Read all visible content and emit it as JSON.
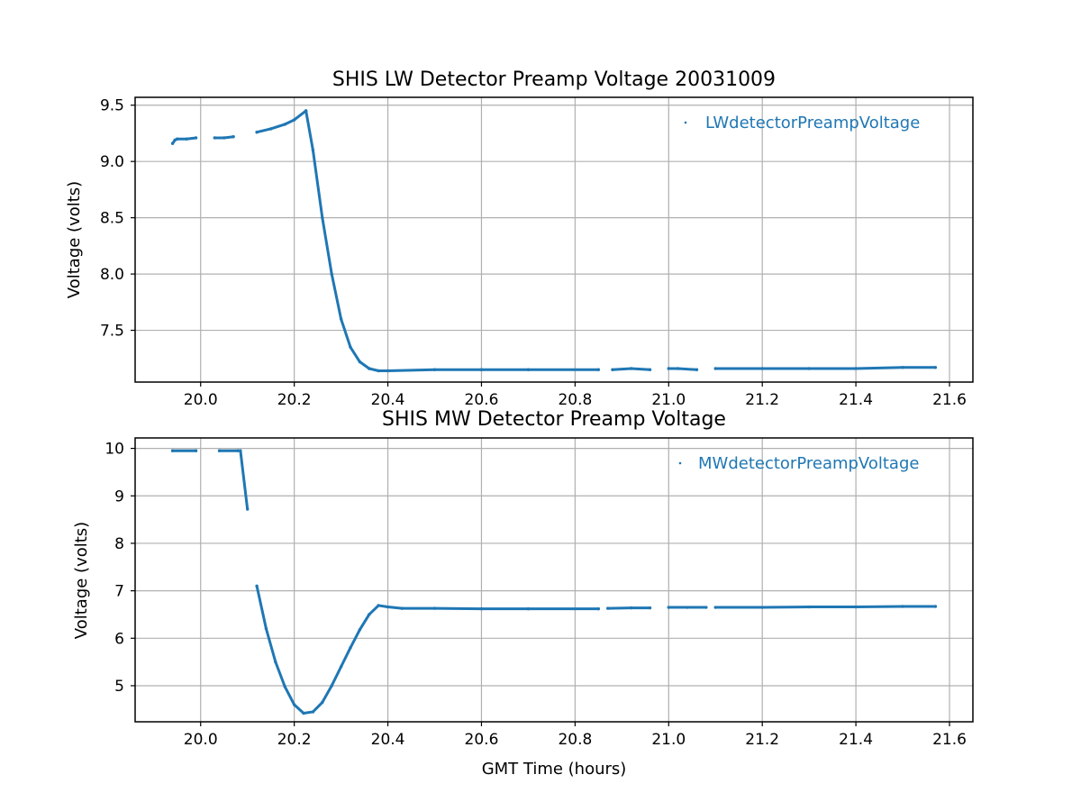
{
  "chart_data": [
    {
      "type": "scatter",
      "title": "SHIS LW Detector Preamp Voltage 20031009",
      "xlabel": "",
      "ylabel": "Voltage (volts)",
      "xlim": [
        19.86,
        21.65
      ],
      "ylim": [
        7.04,
        9.57
      ],
      "xticks": [
        "20.0",
        "20.2",
        "20.4",
        "20.6",
        "20.8",
        "21.0",
        "21.2",
        "21.4",
        "21.6"
      ],
      "yticks": [
        "7.5",
        "8.0",
        "8.5",
        "9.0",
        "9.5"
      ],
      "grid": true,
      "legend_position": "top-right",
      "series": [
        {
          "name": "LWdetectorPreampVoltage",
          "color": "#1f77b4",
          "segments": [
            {
              "x": [
                19.94,
                19.945,
                19.95,
                19.97,
                19.99
              ],
              "y": [
                9.16,
                9.19,
                9.2,
                9.2,
                9.21
              ]
            },
            {
              "x": [
                20.03,
                20.05,
                20.07
              ],
              "y": [
                9.21,
                9.21,
                9.22
              ]
            },
            {
              "x": [
                20.12,
                20.15,
                20.18,
                20.2,
                20.225
              ],
              "y": [
                9.26,
                9.29,
                9.33,
                9.37,
                9.45
              ]
            },
            {
              "x": [
                20.225,
                20.24,
                20.26,
                20.28,
                20.3,
                20.32,
                20.34,
                20.36,
                20.38,
                20.4,
                20.5,
                20.6,
                20.7,
                20.85
              ],
              "y": [
                9.45,
                9.1,
                8.5,
                8.0,
                7.6,
                7.35,
                7.22,
                7.16,
                7.14,
                7.14,
                7.15,
                7.15,
                7.15,
                7.15
              ]
            },
            {
              "x": [
                20.88,
                20.92,
                20.96
              ],
              "y": [
                7.15,
                7.16,
                7.15
              ]
            },
            {
              "x": [
                21.0,
                21.02,
                21.06
              ],
              "y": [
                7.16,
                7.16,
                7.15
              ]
            },
            {
              "x": [
                21.1,
                21.2,
                21.3,
                21.4,
                21.5,
                21.57
              ],
              "y": [
                7.16,
                7.16,
                7.16,
                7.16,
                7.17,
                7.17
              ]
            }
          ]
        }
      ]
    },
    {
      "type": "scatter",
      "title": "SHIS MW Detector Preamp Voltage",
      "xlabel": "GMT Time (hours)",
      "ylabel": "Voltage (volts)",
      "xlim": [
        19.86,
        21.65
      ],
      "ylim": [
        4.24,
        10.22
      ],
      "xticks": [
        "20.0",
        "20.2",
        "20.4",
        "20.6",
        "20.8",
        "21.0",
        "21.2",
        "21.4",
        "21.6"
      ],
      "yticks": [
        "5",
        "6",
        "7",
        "8",
        "9",
        "10"
      ],
      "grid": true,
      "legend_position": "top-right",
      "series": [
        {
          "name": "MWdetectorPreampVoltage",
          "color": "#1f77b4",
          "segments": [
            {
              "x": [
                19.94,
                19.99
              ],
              "y": [
                9.95,
                9.95
              ]
            },
            {
              "x": [
                20.04,
                20.08
              ],
              "y": [
                9.95,
                9.95
              ]
            },
            {
              "x": [
                20.085,
                20.1
              ],
              "y": [
                9.95,
                8.72
              ]
            },
            {
              "x": [
                20.12,
                20.14,
                20.16,
                20.18,
                20.2,
                20.22,
                20.24,
                20.26,
                20.28,
                20.3,
                20.32,
                20.34,
                20.36,
                20.38,
                20.4,
                20.43,
                20.5,
                20.6,
                20.7,
                20.85
              ],
              "y": [
                7.1,
                6.2,
                5.5,
                4.98,
                4.6,
                4.42,
                4.45,
                4.65,
                5.0,
                5.4,
                5.8,
                6.18,
                6.5,
                6.69,
                6.66,
                6.63,
                6.63,
                6.62,
                6.62,
                6.62
              ]
            },
            {
              "x": [
                20.87,
                20.92,
                20.96
              ],
              "y": [
                6.63,
                6.64,
                6.64
              ]
            },
            {
              "x": [
                21.0,
                21.04,
                21.08
              ],
              "y": [
                6.65,
                6.65,
                6.65
              ]
            },
            {
              "x": [
                21.1,
                21.2,
                21.3,
                21.4,
                21.5,
                21.57
              ],
              "y": [
                6.65,
                6.65,
                6.66,
                6.66,
                6.67,
                6.67
              ]
            }
          ]
        }
      ]
    }
  ]
}
